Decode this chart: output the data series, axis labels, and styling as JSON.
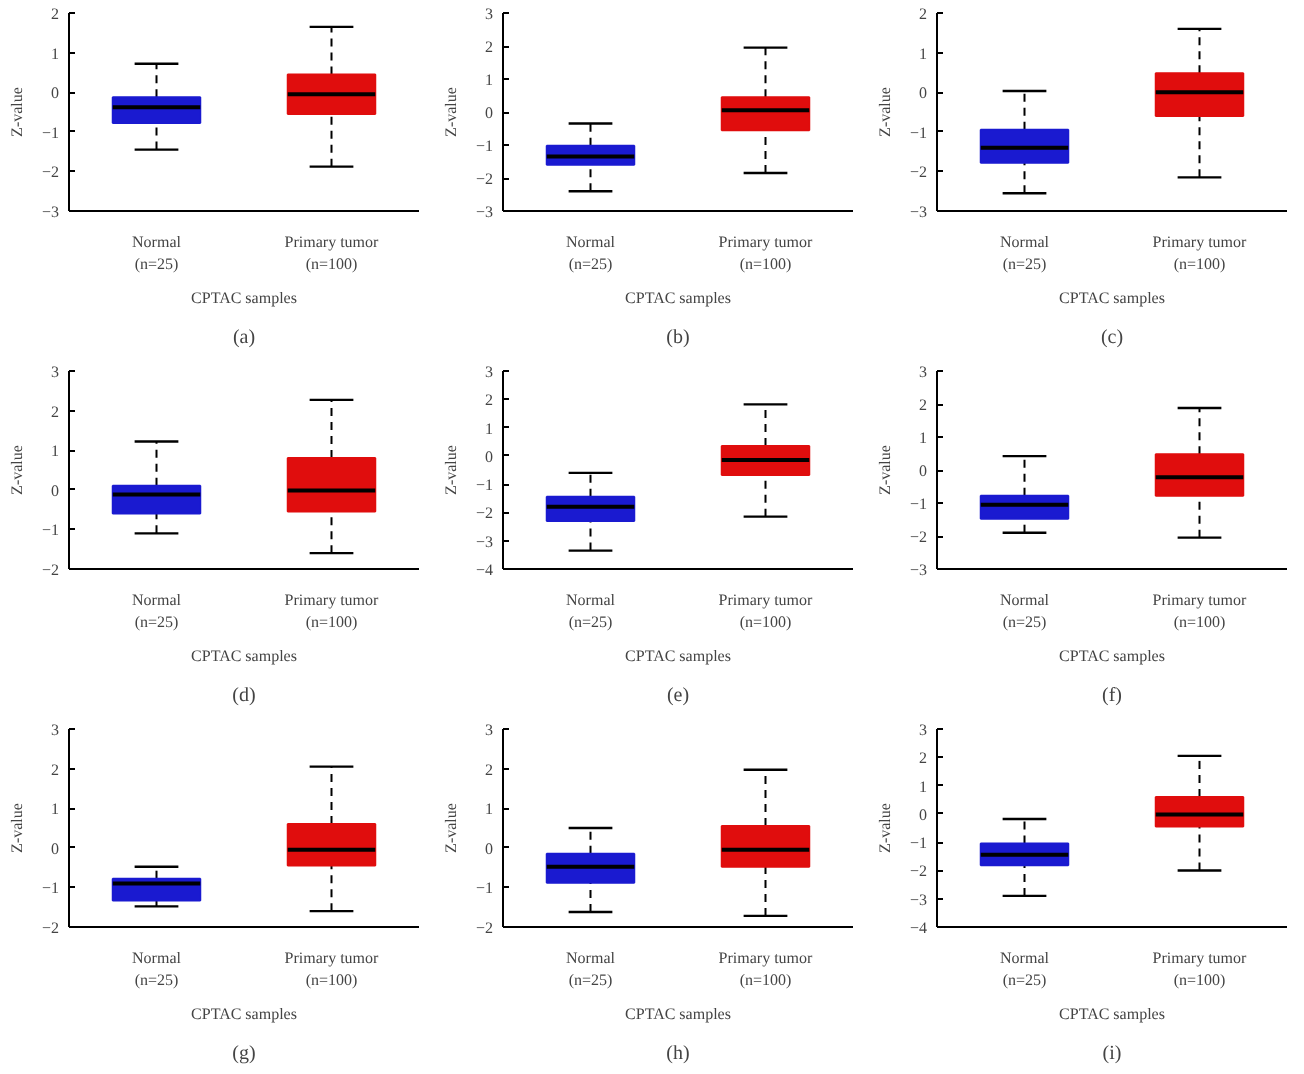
{
  "chart_data": [
    {
      "type": "box",
      "categories": [
        "Normal\n(n=25)",
        "Primary tumor\n(n=100)"
      ],
      "colors": [
        "#1a1ad0",
        "#e00d0d"
      ],
      "xlabel": "CPTAC samples",
      "ylabel": "Z-value",
      "ylim": [
        -3,
        2
      ],
      "yticks": [
        -3,
        -2,
        -1,
        0,
        1,
        2
      ],
      "grid": false,
      "annotations": [
        "(a)"
      ],
      "boxes": [
        {
          "low": -1.45,
          "q1": -0.78,
          "median": -0.38,
          "q3": -0.13,
          "high": 0.72
        },
        {
          "low": -1.88,
          "q1": -0.55,
          "median": -0.05,
          "q3": 0.45,
          "high": 1.65
        }
      ]
    },
    {
      "type": "box",
      "categories": [
        "Normal\n(n=25)",
        "Primary tumor\n(n=100)"
      ],
      "colors": [
        "#1a1ad0",
        "#e00d0d"
      ],
      "xlabel": "CPTAC samples",
      "ylabel": "Z-value",
      "ylim": [
        -3,
        3
      ],
      "yticks": [
        -3,
        -2,
        -1,
        0,
        1,
        2,
        3
      ],
      "grid": false,
      "annotations": [
        "(b)"
      ],
      "boxes": [
        {
          "low": -2.4,
          "q1": -1.6,
          "median": -1.35,
          "q3": -1.02,
          "high": -0.35
        },
        {
          "low": -1.85,
          "q1": -0.55,
          "median": 0.05,
          "q3": 0.45,
          "high": 1.95
        }
      ]
    },
    {
      "type": "box",
      "categories": [
        "Normal\n(n=25)",
        "Primary tumor\n(n=100)"
      ],
      "colors": [
        "#1a1ad0",
        "#e00d0d"
      ],
      "xlabel": "CPTAC samples",
      "ylabel": "Z-value",
      "ylim": [
        -3,
        2
      ],
      "yticks": [
        -3,
        -2,
        -1,
        0,
        1,
        2
      ],
      "grid": false,
      "annotations": [
        "(c)"
      ],
      "boxes": [
        {
          "low": -2.55,
          "q1": -1.78,
          "median": -1.4,
          "q3": -0.95,
          "high": 0.03
        },
        {
          "low": -2.15,
          "q1": -0.6,
          "median": 0.0,
          "q3": 0.48,
          "high": 1.6
        }
      ]
    },
    {
      "type": "box",
      "categories": [
        "Normal\n(n=25)",
        "Primary tumor\n(n=100)"
      ],
      "colors": [
        "#1a1ad0",
        "#e00d0d"
      ],
      "xlabel": "CPTAC samples",
      "ylabel": "Z-value",
      "ylim": [
        -2,
        3
      ],
      "yticks": [
        -2,
        -1,
        0,
        1,
        2,
        3
      ],
      "grid": false,
      "annotations": [
        "(d)"
      ],
      "boxes": [
        {
          "low": -1.1,
          "q1": -0.6,
          "median": -0.12,
          "q3": 0.1,
          "high": 1.22
        },
        {
          "low": -1.6,
          "q1": -0.55,
          "median": -0.02,
          "q3": 0.8,
          "high": 2.27
        }
      ]
    },
    {
      "type": "box",
      "categories": [
        "Normal\n(n=25)",
        "Primary tumor\n(n=100)"
      ],
      "colors": [
        "#1a1ad0",
        "#e00d0d"
      ],
      "xlabel": "CPTAC samples",
      "ylabel": "Z-value",
      "ylim": [
        -4,
        3
      ],
      "yticks": [
        -4,
        -3,
        -2,
        -1,
        0,
        1,
        2,
        3
      ],
      "grid": false,
      "annotations": [
        "(e)"
      ],
      "boxes": [
        {
          "low": -3.35,
          "q1": -2.3,
          "median": -1.8,
          "q3": -1.45,
          "high": -0.6
        },
        {
          "low": -2.15,
          "q1": -0.68,
          "median": -0.15,
          "q3": 0.35,
          "high": 1.82
        }
      ]
    },
    {
      "type": "box",
      "categories": [
        "Normal\n(n=25)",
        "Primary tumor\n(n=100)"
      ],
      "colors": [
        "#1a1ad0",
        "#e00d0d"
      ],
      "xlabel": "CPTAC samples",
      "ylabel": "Z-value",
      "ylim": [
        -3,
        3
      ],
      "yticks": [
        -3,
        -2,
        -1,
        0,
        1,
        2,
        3
      ],
      "grid": false,
      "annotations": [
        "(f)"
      ],
      "boxes": [
        {
          "low": -1.9,
          "q1": -1.48,
          "median": -1.05,
          "q3": -0.78,
          "high": 0.42
        },
        {
          "low": -2.05,
          "q1": -0.78,
          "median": -0.22,
          "q3": 0.48,
          "high": 1.88
        }
      ]
    },
    {
      "type": "box",
      "categories": [
        "Normal\n(n=25)",
        "Primary tumor\n(n=100)"
      ],
      "colors": [
        "#1a1ad0",
        "#e00d0d"
      ],
      "xlabel": "CPTAC samples",
      "ylabel": "Z-value",
      "ylim": [
        -2,
        3
      ],
      "yticks": [
        -2,
        -1,
        0,
        1,
        2,
        3
      ],
      "grid": false,
      "annotations": [
        "(g)"
      ],
      "boxes": [
        {
          "low": -1.48,
          "q1": -1.33,
          "median": -0.9,
          "q3": -0.78,
          "high": -0.48
        },
        {
          "low": -1.6,
          "q1": -0.45,
          "median": -0.05,
          "q3": 0.6,
          "high": 2.05
        }
      ]
    },
    {
      "type": "box",
      "categories": [
        "Normal\n(n=25)",
        "Primary tumor\n(n=100)"
      ],
      "colors": [
        "#1a1ad0",
        "#e00d0d"
      ],
      "xlabel": "CPTAC samples",
      "ylabel": "Z-value",
      "ylim": [
        -2,
        3
      ],
      "yticks": [
        -2,
        -1,
        0,
        1,
        2,
        3
      ],
      "grid": false,
      "annotations": [
        "(h)"
      ],
      "boxes": [
        {
          "low": -1.62,
          "q1": -0.88,
          "median": -0.48,
          "q3": -0.15,
          "high": 0.5
        },
        {
          "low": -1.72,
          "q1": -0.48,
          "median": -0.05,
          "q3": 0.55,
          "high": 1.97
        }
      ]
    },
    {
      "type": "box",
      "categories": [
        "Normal\n(n=25)",
        "Primary tumor\n(n=100)"
      ],
      "colors": [
        "#1a1ad0",
        "#e00d0d"
      ],
      "xlabel": "CPTAC samples",
      "ylabel": "Z-value",
      "ylim": [
        -4,
        3
      ],
      "yticks": [
        -4,
        -3,
        -2,
        -1,
        0,
        1,
        2,
        3
      ],
      "grid": false,
      "annotations": [
        "(i)"
      ],
      "boxes": [
        {
          "low": -2.9,
          "q1": -1.82,
          "median": -1.45,
          "q3": -1.05,
          "high": -0.18
        },
        {
          "low": -2.0,
          "q1": -0.45,
          "median": -0.02,
          "q3": 0.6,
          "high": 2.05
        }
      ]
    }
  ]
}
